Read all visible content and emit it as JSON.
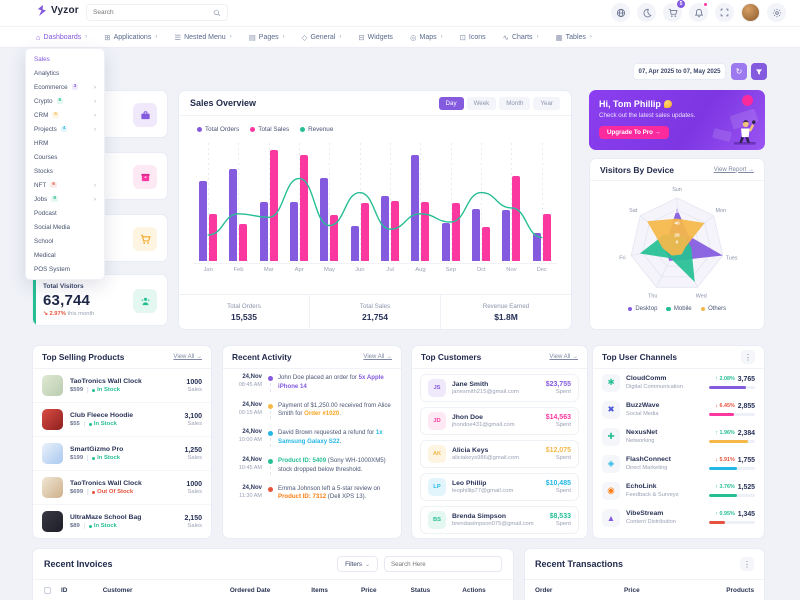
{
  "colors": {
    "primary": "#845adf",
    "pink": "#fb37a0",
    "green": "#26bf94",
    "orange": "#f5b849",
    "cyan": "#23b7e5",
    "red": "#e6533c"
  },
  "header": {
    "logo": "Vyzor",
    "search_placeholder": "Search",
    "cart_badge": "5"
  },
  "nav": {
    "items": [
      {
        "label": "Dashboards",
        "glyph": "⌂",
        "chevron": true,
        "active": true
      },
      {
        "label": "Applications",
        "glyph": "⊞",
        "chevron": true
      },
      {
        "label": "Nested Menu",
        "glyph": "☰",
        "chevron": true
      },
      {
        "label": "Pages",
        "glyph": "▤",
        "chevron": true
      },
      {
        "label": "General",
        "glyph": "◇",
        "chevron": true
      },
      {
        "label": "Widgets",
        "glyph": "⊟",
        "chevron": false
      },
      {
        "label": "Maps",
        "glyph": "◎",
        "chevron": true
      },
      {
        "label": "Icons",
        "glyph": "⊡",
        "chevron": false
      },
      {
        "label": "Charts",
        "glyph": "∿",
        "chevron": true
      },
      {
        "label": "Tables",
        "glyph": "▦",
        "chevron": true
      }
    ]
  },
  "dropdown": {
    "items": [
      {
        "label": "Sales",
        "active": true
      },
      {
        "label": "Analytics"
      },
      {
        "label": "Ecommerce",
        "badge": "3",
        "badge_color": "#845adf",
        "badge_bg": "#efe9fb",
        "chevron": true
      },
      {
        "label": "Crypto",
        "badge": "6",
        "badge_color": "#26bf94",
        "badge_bg": "#e5f7f1",
        "chevron": true
      },
      {
        "label": "CRM",
        "badge": "5",
        "badge_color": "#f5b849",
        "badge_bg": "#fdf4e2",
        "chevron": true
      },
      {
        "label": "Projects",
        "badge": "4",
        "badge_color": "#23b7e5",
        "badge_bg": "#e3f5fc",
        "chevron": true
      },
      {
        "label": "HRM"
      },
      {
        "label": "Courses"
      },
      {
        "label": "Stocks"
      },
      {
        "label": "NFT",
        "badge": "6",
        "badge_color": "#e6533c",
        "badge_bg": "#fcebe8",
        "chevron": true
      },
      {
        "label": "Jobs",
        "badge": "8",
        "badge_color": "#26bf94",
        "badge_bg": "#e5f7f1",
        "chevron": true
      },
      {
        "label": "Podcast"
      },
      {
        "label": "Social Media"
      },
      {
        "label": "School"
      },
      {
        "label": "Medical"
      },
      {
        "label": "POS System"
      }
    ]
  },
  "date_filter": {
    "range": "07, Apr 2025 to 07, May 2025"
  },
  "greeting": {
    "title": "Hi, Tom Phillip",
    "subtitle": "Check out the latest sales updates.",
    "button": "Upgrade To Pro →"
  },
  "total_visitors": {
    "label": "Total Visitors",
    "value": "63,744",
    "change": "↘ 2.97%",
    "period": "this month"
  },
  "sales_overview": {
    "title": "Sales Overview",
    "tabs": [
      {
        "label": "Day",
        "active": true
      },
      {
        "label": "Week"
      },
      {
        "label": "Month"
      },
      {
        "label": "Year"
      }
    ],
    "legend": [
      {
        "label": "Total Orders",
        "color": "#845adf"
      },
      {
        "label": "Total Sales",
        "color": "#fb37a0"
      },
      {
        "label": "Revenue",
        "color": "#26bf94"
      }
    ],
    "footer": [
      {
        "label": "Total Orders",
        "value": "15,535"
      },
      {
        "label": "Total Sales",
        "value": "21,754"
      },
      {
        "label": "Revenue Earned",
        "value": "$1.8M"
      }
    ]
  },
  "chart_data": [
    {
      "type": "bar",
      "title": "Sales Overview",
      "categories": [
        "Jan",
        "Feb",
        "Mar",
        "Apr",
        "May",
        "Jun",
        "Jul",
        "Aug",
        "Sep",
        "Oct",
        "Nov",
        "Dec"
      ],
      "series": [
        {
          "name": "Total Orders",
          "type": "bar",
          "color": "#845adf",
          "values": [
            68,
            78,
            50,
            50,
            70,
            30,
            55,
            90,
            32,
            44,
            43,
            24
          ]
        },
        {
          "name": "Total Sales",
          "type": "bar",
          "color": "#fb37a0",
          "values": [
            40,
            31,
            94,
            90,
            39,
            49,
            51,
            50,
            49,
            29,
            72,
            40
          ]
        },
        {
          "name": "Revenue",
          "type": "line",
          "color": "#26bf94",
          "values": [
            22,
            40,
            37,
            70,
            30,
            58,
            27,
            40,
            33,
            58,
            45,
            20
          ]
        }
      ],
      "ylim": [
        0,
        100
      ],
      "grid": "vertical-dotted",
      "legend_position": "top-left"
    },
    {
      "type": "radar",
      "title": "Visitors By Device",
      "categories": [
        "Sun",
        "Mon",
        "Tues",
        "Wed",
        "Thu",
        "Fri",
        "Sat"
      ],
      "series": [
        {
          "name": "Desktop",
          "color": "#845adf",
          "values": [
            62,
            25,
            80,
            28,
            30,
            22,
            20
          ]
        },
        {
          "name": "Mobile",
          "color": "#26bf94",
          "values": [
            18,
            20,
            25,
            70,
            25,
            65,
            28
          ]
        },
        {
          "name": "Others",
          "color": "#f5b849",
          "values": [
            45,
            60,
            15,
            18,
            20,
            25,
            65
          ]
        }
      ],
      "ticks": [
        0,
        20,
        40,
        60
      ],
      "max": 80
    }
  ],
  "visitors_by_device": {
    "title": "Visitors By Device",
    "link": "View Report →",
    "legend": [
      {
        "label": "Desktop",
        "color": "#845adf"
      },
      {
        "label": "Mobile",
        "color": "#26bf94"
      },
      {
        "label": "Others",
        "color": "#f5b849"
      }
    ]
  },
  "top_selling": {
    "title": "Top Selling Products",
    "link": "View All →",
    "items": [
      {
        "name": "TaoTronics Wall Clock",
        "price": "$599",
        "stock": "In Stock",
        "stock_color": "#26bf94",
        "sales": "1000",
        "sales_lbl": "Sales",
        "thumb": "linear-gradient(135deg,#dfe9d2,#b9ccb0)"
      },
      {
        "name": "Club Fleece Hoodie",
        "price": "$55",
        "stock": "In Stock",
        "stock_color": "#26bf94",
        "sales": "3,100",
        "sales_lbl": "Sales",
        "thumb": "linear-gradient(135deg,#d94d43,#8e1f1f)"
      },
      {
        "name": "SmartGizmo Pro",
        "price": "$199",
        "stock": "In Stock",
        "stock_color": "#26bf94",
        "sales": "1,250",
        "sales_lbl": "Sales",
        "thumb": "linear-gradient(135deg,#eaf2fb,#a9c8ef)"
      },
      {
        "name": "TaoTronics Wall Clock",
        "price": "$699",
        "stock": "Out Of Stock",
        "stock_color": "#e6533c",
        "sales": "1000",
        "sales_lbl": "Sales",
        "thumb": "linear-gradient(135deg,#f1e6d4,#cdb08a)"
      },
      {
        "name": "UltraMaze School Bag",
        "price": "$89",
        "stock": "In Stock",
        "stock_color": "#26bf94",
        "sales": "2,150",
        "sales_lbl": "Sales",
        "thumb": "linear-gradient(135deg,#3a3a45,#1d1d26)"
      }
    ]
  },
  "recent_activity": {
    "title": "Recent Activity",
    "link": "View All →",
    "items": [
      {
        "date": "24,Nov",
        "time": "08:45 AM",
        "dot": "#845adf",
        "pre": "John Doe placed an order for ",
        "hl": "5x Apple iPhone 14",
        "hl_color": "#845adf",
        "post": ""
      },
      {
        "date": "24,Nov",
        "time": "09:15 AM",
        "dot": "#f5b849",
        "pre": "Payment of $1,250.00 received from Alice Smith for ",
        "hl": "Order #1020",
        "hl_color": "#f5a623",
        "post": "."
      },
      {
        "date": "24,Nov",
        "time": "10:00 AM",
        "dot": "#23b7e5",
        "pre": "David Brown requested a refund for ",
        "hl": "1x Samsung Galaxy S22",
        "hl_color": "#23b7e5",
        "post": "."
      },
      {
        "date": "24,Nov",
        "time": "10:45 AM",
        "dot": "#26bf94",
        "pre": "",
        "hl": "Product ID: 5409",
        "hl_color": "#26bf94",
        "post": " (Sony WH-1000XM5) stock dropped below threshold."
      },
      {
        "date": "24,Nov",
        "time": "11:30 AM",
        "dot": "#e6533c",
        "pre": "Emma Johnson left a 5-star review on ",
        "hl": "Product ID: 7312",
        "hl_color": "#fd7e14",
        "post": " (Dell XPS 13)."
      }
    ]
  },
  "top_customers": {
    "title": "Top Customers",
    "link": "View All →",
    "spent_label": "Spent",
    "items": [
      {
        "initials": "JS",
        "name": "Jane Smith",
        "email": "janesmith215@gmail.com",
        "amount": "$23,755",
        "color": "#845adf",
        "bg": "#efe9fb"
      },
      {
        "initials": "JD",
        "name": "Jhon Doe",
        "email": "jhondoe431@gmail.com",
        "amount": "$14,563",
        "color": "#fb37a0",
        "bg": "#fde9f4"
      },
      {
        "initials": "AK",
        "name": "Alicia Keys",
        "email": "aliciakeys986@gmail.com",
        "amount": "$12,075",
        "color": "#f5b849",
        "bg": "#fdf4e2"
      },
      {
        "initials": "LP",
        "name": "Leo Phillip",
        "email": "leophillip77@gmail.com",
        "amount": "$10,485",
        "color": "#23b7e5",
        "bg": "#e3f5fc"
      },
      {
        "initials": "BS",
        "name": "Brenda Simpson",
        "email": "brendasimpson075@gmail.com",
        "amount": "$8,533",
        "color": "#26bf94",
        "bg": "#e5f7f1"
      }
    ]
  },
  "top_channels": {
    "title": "Top User Channels",
    "items": [
      {
        "name": "CloudComm",
        "category": "Digital Communication",
        "glyph": "✱",
        "glyph_color": "#26bf94",
        "change": "↑ 2.08%",
        "change_color": "#26bf94",
        "value": "3,765",
        "bar": "#845adf",
        "pct": 80
      },
      {
        "name": "BuzzWave",
        "category": "Social Media",
        "glyph": "✖",
        "glyph_color": "#4a57d8",
        "change": "↓ 6.45%",
        "change_color": "#e6533c",
        "value": "2,855",
        "bar": "#fb37a0",
        "pct": 55
      },
      {
        "name": "NexusNet",
        "category": "Networking",
        "glyph": "✚",
        "glyph_color": "#26bf94",
        "change": "↑ 1.96%",
        "change_color": "#26bf94",
        "value": "2,384",
        "bar": "#f5b849",
        "pct": 85
      },
      {
        "name": "FlashConnect",
        "category": "Direct Marketing",
        "glyph": "◈",
        "glyph_color": "#23b7e5",
        "change": "↓ 5.91%",
        "change_color": "#e6533c",
        "value": "1,755",
        "bar": "#23b7e5",
        "pct": 60
      },
      {
        "name": "EchoLink",
        "category": "Feedback & Surveys",
        "glyph": "◉",
        "glyph_color": "#fd7e14",
        "change": "↑ 3.76%",
        "change_color": "#26bf94",
        "value": "1,525",
        "bar": "#26bf94",
        "pct": 60
      },
      {
        "name": "VibeStream",
        "category": "Content Distribution",
        "glyph": "▲",
        "glyph_color": "#845adf",
        "change": "↑ 0.95%",
        "change_color": "#26bf94",
        "value": "1,345",
        "bar": "#e6533c",
        "pct": 35
      }
    ]
  },
  "recent_invoices": {
    "title": "Recent Invoices",
    "filters_label": "Filters",
    "search_placeholder": "Search Here",
    "columns": [
      "ID",
      "Customer",
      "Ordered Date",
      "Items",
      "Price",
      "Status",
      "Actions"
    ]
  },
  "recent_transactions": {
    "title": "Recent Transactions",
    "columns": [
      "Order",
      "Price",
      "Products"
    ]
  }
}
